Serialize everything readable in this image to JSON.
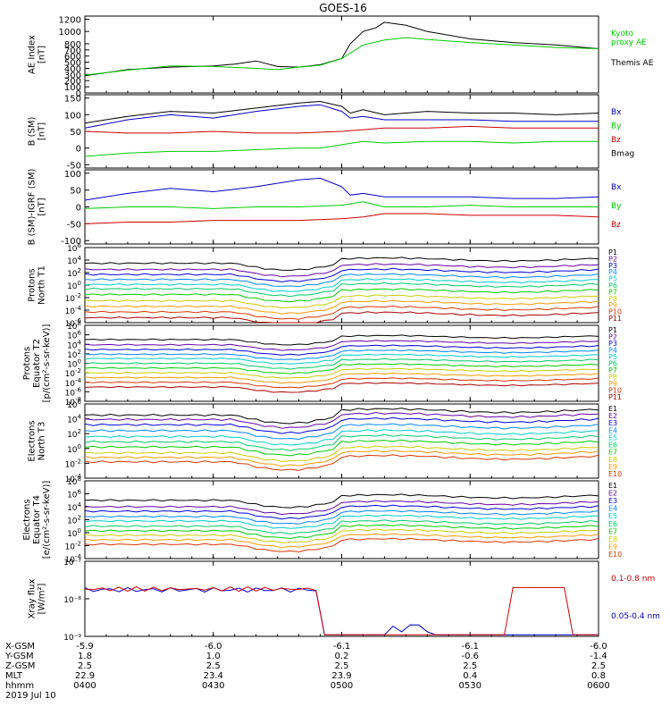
{
  "title": "GOES-16",
  "time_axis": {
    "ticks": [
      "0400",
      "0430",
      "0500",
      "0530",
      "0600"
    ],
    "rows": [
      {
        "label": "X-GSM",
        "values": [
          "-5.9",
          "-6.0",
          "-6.1",
          "-6.1",
          "-6.0"
        ]
      },
      {
        "label": "Y-GSM",
        "values": [
          "1.8",
          "1.0",
          "0.2",
          "-0.6",
          "-1.4"
        ]
      },
      {
        "label": "Z-GSM",
        "values": [
          "2.5",
          "2.5",
          "2.5",
          "2.5",
          "2.5"
        ]
      },
      {
        "label": "MLT",
        "values": [
          "22.9",
          "23.4",
          "23.9",
          "0.4",
          "0.8"
        ]
      },
      {
        "label": "hhmm",
        "values": [
          "0400",
          "0430",
          "0500",
          "0530",
          "0600"
        ]
      }
    ],
    "date": "2019 Jul 10"
  },
  "chart_data": [
    {
      "type": "line",
      "ylabel": "AE Index\n[nT]",
      "yticks": [
        "0",
        "100",
        "200",
        "300",
        "400",
        "500",
        "600",
        "700",
        "800",
        "1000",
        "1200"
      ],
      "ylim": [
        0,
        1250
      ],
      "legend": [
        {
          "name": "Kyoto\nproxy AE",
          "color": "#00cc00"
        },
        {
          "name": "Themis AE",
          "color": "#000000"
        }
      ],
      "series": [
        {
          "name": "Themis AE",
          "color": "#000000",
          "x": [
            0,
            10,
            20,
            30,
            35,
            40,
            45,
            50,
            55,
            60,
            62,
            65,
            68,
            70,
            75,
            80,
            90,
            100,
            110,
            120
          ],
          "y": [
            280,
            380,
            420,
            440,
            470,
            520,
            430,
            420,
            460,
            560,
            800,
            1000,
            1060,
            1150,
            1100,
            1000,
            880,
            820,
            780,
            720
          ]
        },
        {
          "name": "Kyoto proxy AE",
          "color": "#00cc00",
          "x": [
            0,
            10,
            20,
            30,
            40,
            45,
            50,
            55,
            60,
            65,
            70,
            75,
            80,
            90,
            100,
            110,
            120
          ],
          "y": [
            290,
            370,
            440,
            430,
            400,
            380,
            420,
            450,
            560,
            780,
            860,
            900,
            870,
            820,
            780,
            740,
            720
          ]
        }
      ]
    },
    {
      "type": "line",
      "ylabel": "B (SM)\n[nT]",
      "yticks": [
        "-50",
        "0",
        "50",
        "100",
        "150"
      ],
      "ylim": [
        -60,
        160
      ],
      "legend": [
        {
          "name": "Bx",
          "color": "#0000cc"
        },
        {
          "name": "By",
          "color": "#00cc00"
        },
        {
          "name": "Bz",
          "color": "#cc0000"
        },
        {
          "name": "Bmag",
          "color": "#000000"
        }
      ],
      "series": [
        {
          "name": "Bmag",
          "color": "#000000",
          "x": [
            0,
            10,
            20,
            30,
            40,
            50,
            55,
            60,
            62,
            65,
            70,
            80,
            90,
            100,
            110,
            120
          ],
          "y": [
            75,
            95,
            110,
            105,
            120,
            135,
            140,
            125,
            105,
            115,
            100,
            110,
            105,
            105,
            100,
            105
          ]
        },
        {
          "name": "Bx",
          "color": "#0000cc",
          "x": [
            0,
            10,
            20,
            30,
            40,
            50,
            55,
            60,
            62,
            65,
            70,
            80,
            90,
            100,
            110,
            120
          ],
          "y": [
            60,
            85,
            100,
            90,
            110,
            125,
            130,
            110,
            90,
            95,
            85,
            85,
            85,
            80,
            80,
            80
          ]
        },
        {
          "name": "Bz",
          "color": "#cc0000",
          "x": [
            0,
            10,
            20,
            30,
            40,
            50,
            60,
            65,
            70,
            80,
            90,
            100,
            110,
            120
          ],
          "y": [
            50,
            45,
            45,
            50,
            45,
            45,
            50,
            55,
            60,
            60,
            65,
            60,
            60,
            60
          ]
        },
        {
          "name": "By",
          "color": "#00cc00",
          "x": [
            0,
            10,
            20,
            30,
            40,
            50,
            55,
            60,
            65,
            70,
            80,
            90,
            100,
            110,
            120
          ],
          "y": [
            -25,
            -15,
            -10,
            -10,
            -5,
            0,
            0,
            10,
            20,
            15,
            20,
            20,
            15,
            20,
            20
          ]
        }
      ]
    },
    {
      "type": "line",
      "ylabel": "B (SM)-IGRF (SM)\n[nT]",
      "yticks": [
        "-100",
        "-50",
        "0",
        "50",
        "100"
      ],
      "ylim": [
        -110,
        110
      ],
      "legend": [
        {
          "name": "Bx",
          "color": "#0000cc"
        },
        {
          "name": "By",
          "color": "#00cc00"
        },
        {
          "name": "Bz",
          "color": "#cc0000"
        }
      ],
      "series": [
        {
          "name": "Bx",
          "color": "#0000cc",
          "x": [
            0,
            10,
            20,
            30,
            40,
            50,
            55,
            60,
            62,
            65,
            70,
            80,
            90,
            100,
            110,
            120
          ],
          "y": [
            20,
            40,
            55,
            45,
            60,
            80,
            85,
            60,
            35,
            40,
            30,
            30,
            30,
            25,
            25,
            30
          ]
        },
        {
          "name": "By",
          "color": "#00cc00",
          "x": [
            0,
            10,
            20,
            30,
            40,
            50,
            60,
            65,
            70,
            80,
            90,
            100,
            110,
            120
          ],
          "y": [
            -5,
            0,
            0,
            -5,
            0,
            0,
            5,
            15,
            0,
            0,
            5,
            0,
            0,
            0
          ]
        },
        {
          "name": "Bz",
          "color": "#cc0000",
          "x": [
            0,
            10,
            20,
            30,
            40,
            50,
            60,
            65,
            70,
            80,
            90,
            100,
            110,
            120
          ],
          "y": [
            -50,
            -45,
            -45,
            -40,
            -40,
            -40,
            -35,
            -30,
            -20,
            -20,
            -25,
            -25,
            -25,
            -30
          ]
        }
      ]
    },
    {
      "type": "line",
      "log": true,
      "ylabel": "Protons\nNorth T1",
      "ylog": [
        -6,
        6
      ],
      "legend": [
        "P1",
        "P2",
        "P3",
        "P4",
        "P5",
        "P6",
        "P7",
        "P8",
        "P9",
        "P10",
        "P11"
      ],
      "colors": [
        "#000000",
        "#6600aa",
        "#0000dd",
        "#0088ff",
        "#00cccc",
        "#00cc66",
        "#00cc00",
        "#cccc00",
        "#ff9900",
        "#dd3300",
        "#aa0000"
      ],
      "base": [
        3.5,
        2.5,
        1.7,
        0.9,
        0.1,
        -0.6,
        -1.5,
        -2.5,
        -3.4,
        -4.3,
        -5.2
      ]
    },
    {
      "type": "line",
      "log": true,
      "ylabel": "Protons\nEquator T2\n[p/(cm²-s-sr-keV)]",
      "ylog": [
        -8,
        8
      ],
      "legend": [
        "P1",
        "P2",
        "P3",
        "P4",
        "P5",
        "P6",
        "P7",
        "P8",
        "P9",
        "P10",
        "P11"
      ],
      "colors": [
        "#000000",
        "#6600aa",
        "#0000dd",
        "#0088ff",
        "#00cccc",
        "#00cc66",
        "#00cc00",
        "#cccc00",
        "#ff9900",
        "#dd3300",
        "#aa0000"
      ],
      "base": [
        5,
        3.9,
        2.9,
        1.9,
        1,
        0,
        -1,
        -2,
        -3,
        -4,
        -5
      ]
    },
    {
      "type": "line",
      "log": true,
      "ylabel": "Electrons\nNorth T3",
      "ylog": [
        -4,
        6
      ],
      "legend": [
        "E1",
        "E2",
        "E3",
        "E4",
        "E5",
        "E6",
        "E7",
        "E8",
        "E9",
        "E10"
      ],
      "colors": [
        "#000000",
        "#6600aa",
        "#0000dd",
        "#0088ff",
        "#00cccc",
        "#00cc66",
        "#00cc00",
        "#cccc00",
        "#ff9900",
        "#dd3300"
      ],
      "base": [
        4.5,
        3.9,
        3.2,
        2.4,
        1.6,
        0.9,
        0.2,
        -0.6,
        -1.2,
        -1.8
      ]
    },
    {
      "type": "line",
      "log": true,
      "ylabel": "Electrons\nEquator T4\n[e/(cm²-s-sr-keV)]",
      "ylog": [
        -4,
        8
      ],
      "legend": [
        "E1",
        "E2",
        "E3",
        "E4",
        "E5",
        "E6",
        "E7",
        "E8",
        "E9",
        "E10"
      ],
      "colors": [
        "#000000",
        "#6600aa",
        "#0000dd",
        "#0088ff",
        "#00cccc",
        "#00cc66",
        "#00cc00",
        "#cccc00",
        "#ff9900",
        "#dd3300"
      ],
      "base": [
        5,
        4,
        3.3,
        2.5,
        1.8,
        1,
        0.3,
        -0.4,
        -1.1,
        -1.8
      ]
    },
    {
      "type": "line",
      "ylabel": "Xray flux\n[W/m²]",
      "yticks": [
        "10⁻⁹",
        "10⁻⁸",
        "10⁻⁷"
      ],
      "legend": [
        {
          "name": "0.1-0.8 nm",
          "color": "#cc0000"
        },
        {
          "name": "0.05-0.4 nm",
          "color": "#0000cc"
        }
      ]
    }
  ]
}
